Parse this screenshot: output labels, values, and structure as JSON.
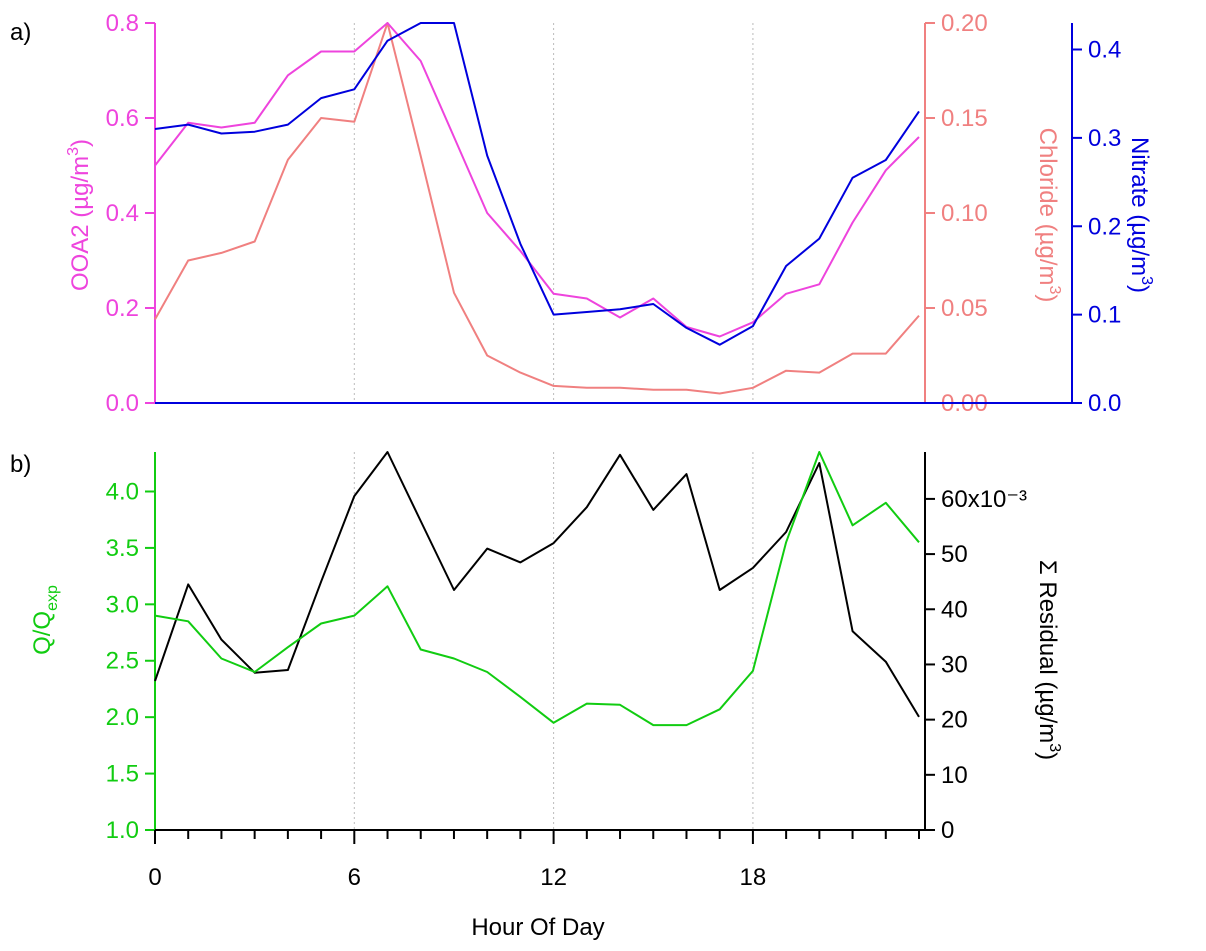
{
  "panel_labels": {
    "a": "a)",
    "b": "b)"
  },
  "xaxis": {
    "label": "Hour Of Day",
    "ticks": [
      0,
      6,
      12,
      18
    ],
    "range": [
      0,
      23
    ]
  },
  "axis_titles": {
    "ooa2": "OOA2 (µg/m³)",
    "chloride": "Chloride (µg/m³)",
    "nitrate": "Nitrate (µg/m³)",
    "q": "Q/Qexp",
    "residual": "Σ Residual (µg/m³)"
  },
  "colors": {
    "ooa2": "#ee44dd",
    "chloride": "#f08080",
    "nitrate": "#0000dd",
    "q": "#11cc11",
    "residual": "#000000",
    "grid": "#bbbbbb"
  },
  "chart_data": [
    {
      "type": "line",
      "panel": "a)",
      "x": [
        0,
        1,
        2,
        3,
        4,
        5,
        6,
        7,
        8,
        9,
        10,
        11,
        12,
        13,
        14,
        15,
        16,
        17,
        18,
        19,
        20,
        21,
        22,
        23
      ],
      "grid": "dotted vertical at 6, 12, 18",
      "axes": {
        "ooa2": {
          "side": "left",
          "ylim": [
            0,
            0.8
          ],
          "ticks": [
            0.0,
            0.2,
            0.4,
            0.6,
            0.8
          ],
          "tick_labels": [
            "0.0",
            "0.2",
            "0.4",
            "0.6",
            "0.8"
          ]
        },
        "chloride": {
          "side": "right",
          "ylim": [
            0,
            0.2
          ],
          "ticks": [
            0.0,
            0.05,
            0.1,
            0.15,
            0.2
          ],
          "tick_labels": [
            "0.00",
            "0.05",
            "0.10",
            "0.15",
            "0.20"
          ]
        },
        "nitrate": {
          "side": "right-outer",
          "ylim": [
            0,
            0.43
          ],
          "ticks": [
            0.0,
            0.1,
            0.2,
            0.3,
            0.4
          ],
          "tick_labels": [
            "0.0",
            "0.1",
            "0.2",
            "0.3",
            "0.4"
          ]
        }
      },
      "series": [
        {
          "axis": "ooa2",
          "values": [
            0.5,
            0.59,
            0.58,
            0.59,
            0.69,
            0.74,
            0.74,
            0.8,
            0.72,
            0.56,
            0.4,
            0.32,
            0.23,
            0.22,
            0.18,
            0.22,
            0.16,
            0.14,
            0.17,
            0.23,
            0.25,
            0.38,
            0.49,
            0.56
          ]
        },
        {
          "axis": "chloride",
          "values": [
            0.044,
            0.075,
            0.079,
            0.085,
            0.128,
            0.15,
            0.148,
            0.2,
            0.13,
            0.058,
            0.025,
            0.016,
            0.009,
            0.008,
            0.008,
            0.007,
            0.007,
            0.005,
            0.008,
            0.017,
            0.016,
            0.026,
            0.026,
            0.046
          ]
        },
        {
          "axis": "nitrate",
          "values": [
            0.31,
            0.315,
            0.305,
            0.307,
            0.315,
            0.345,
            0.355,
            0.41,
            0.43,
            0.43,
            0.28,
            0.18,
            0.1,
            0.103,
            0.106,
            0.112,
            0.085,
            0.066,
            0.087,
            0.155,
            0.186,
            0.255,
            0.275,
            0.33
          ]
        }
      ]
    },
    {
      "type": "line",
      "panel": "b)",
      "x": [
        0,
        1,
        2,
        3,
        4,
        5,
        6,
        7,
        8,
        9,
        10,
        11,
        12,
        13,
        14,
        15,
        16,
        17,
        18,
        19,
        20,
        21,
        22,
        23
      ],
      "grid": "dotted vertical at 6, 12, 18",
      "axes": {
        "q": {
          "side": "left",
          "ylim": [
            1.0,
            4.35
          ],
          "ticks": [
            1.0,
            1.5,
            2.0,
            2.5,
            3.0,
            3.5,
            4.0
          ],
          "tick_labels": [
            "1.0",
            "1.5",
            "2.0",
            "2.5",
            "3.0",
            "3.5",
            "4.0"
          ]
        },
        "residual": {
          "side": "right",
          "ylim": [
            0,
            0.0685
          ],
          "ticks": [
            0,
            0.01,
            0.02,
            0.03,
            0.04,
            0.05,
            0.06
          ],
          "tick_labels": [
            "0",
            "10",
            "20",
            "30",
            "40",
            "50",
            "60x10⁻³"
          ]
        }
      },
      "series": [
        {
          "axis": "q",
          "values": [
            2.9,
            2.85,
            2.52,
            2.4,
            2.62,
            2.83,
            2.9,
            3.16,
            2.6,
            2.52,
            2.4,
            2.18,
            1.95,
            2.12,
            2.11,
            1.93,
            1.93,
            2.07,
            2.41,
            3.55,
            4.35,
            3.7,
            3.9,
            3.55
          ]
        },
        {
          "axis": "residual",
          "values": [
            0.027,
            0.0445,
            0.0345,
            0.0285,
            0.029,
            0.045,
            0.0605,
            0.0685,
            0.056,
            0.0435,
            0.051,
            0.0485,
            0.052,
            0.0585,
            0.068,
            0.058,
            0.0645,
            0.0435,
            0.0475,
            0.054,
            0.0665,
            0.036,
            0.0305,
            0.0205
          ]
        }
      ]
    }
  ]
}
